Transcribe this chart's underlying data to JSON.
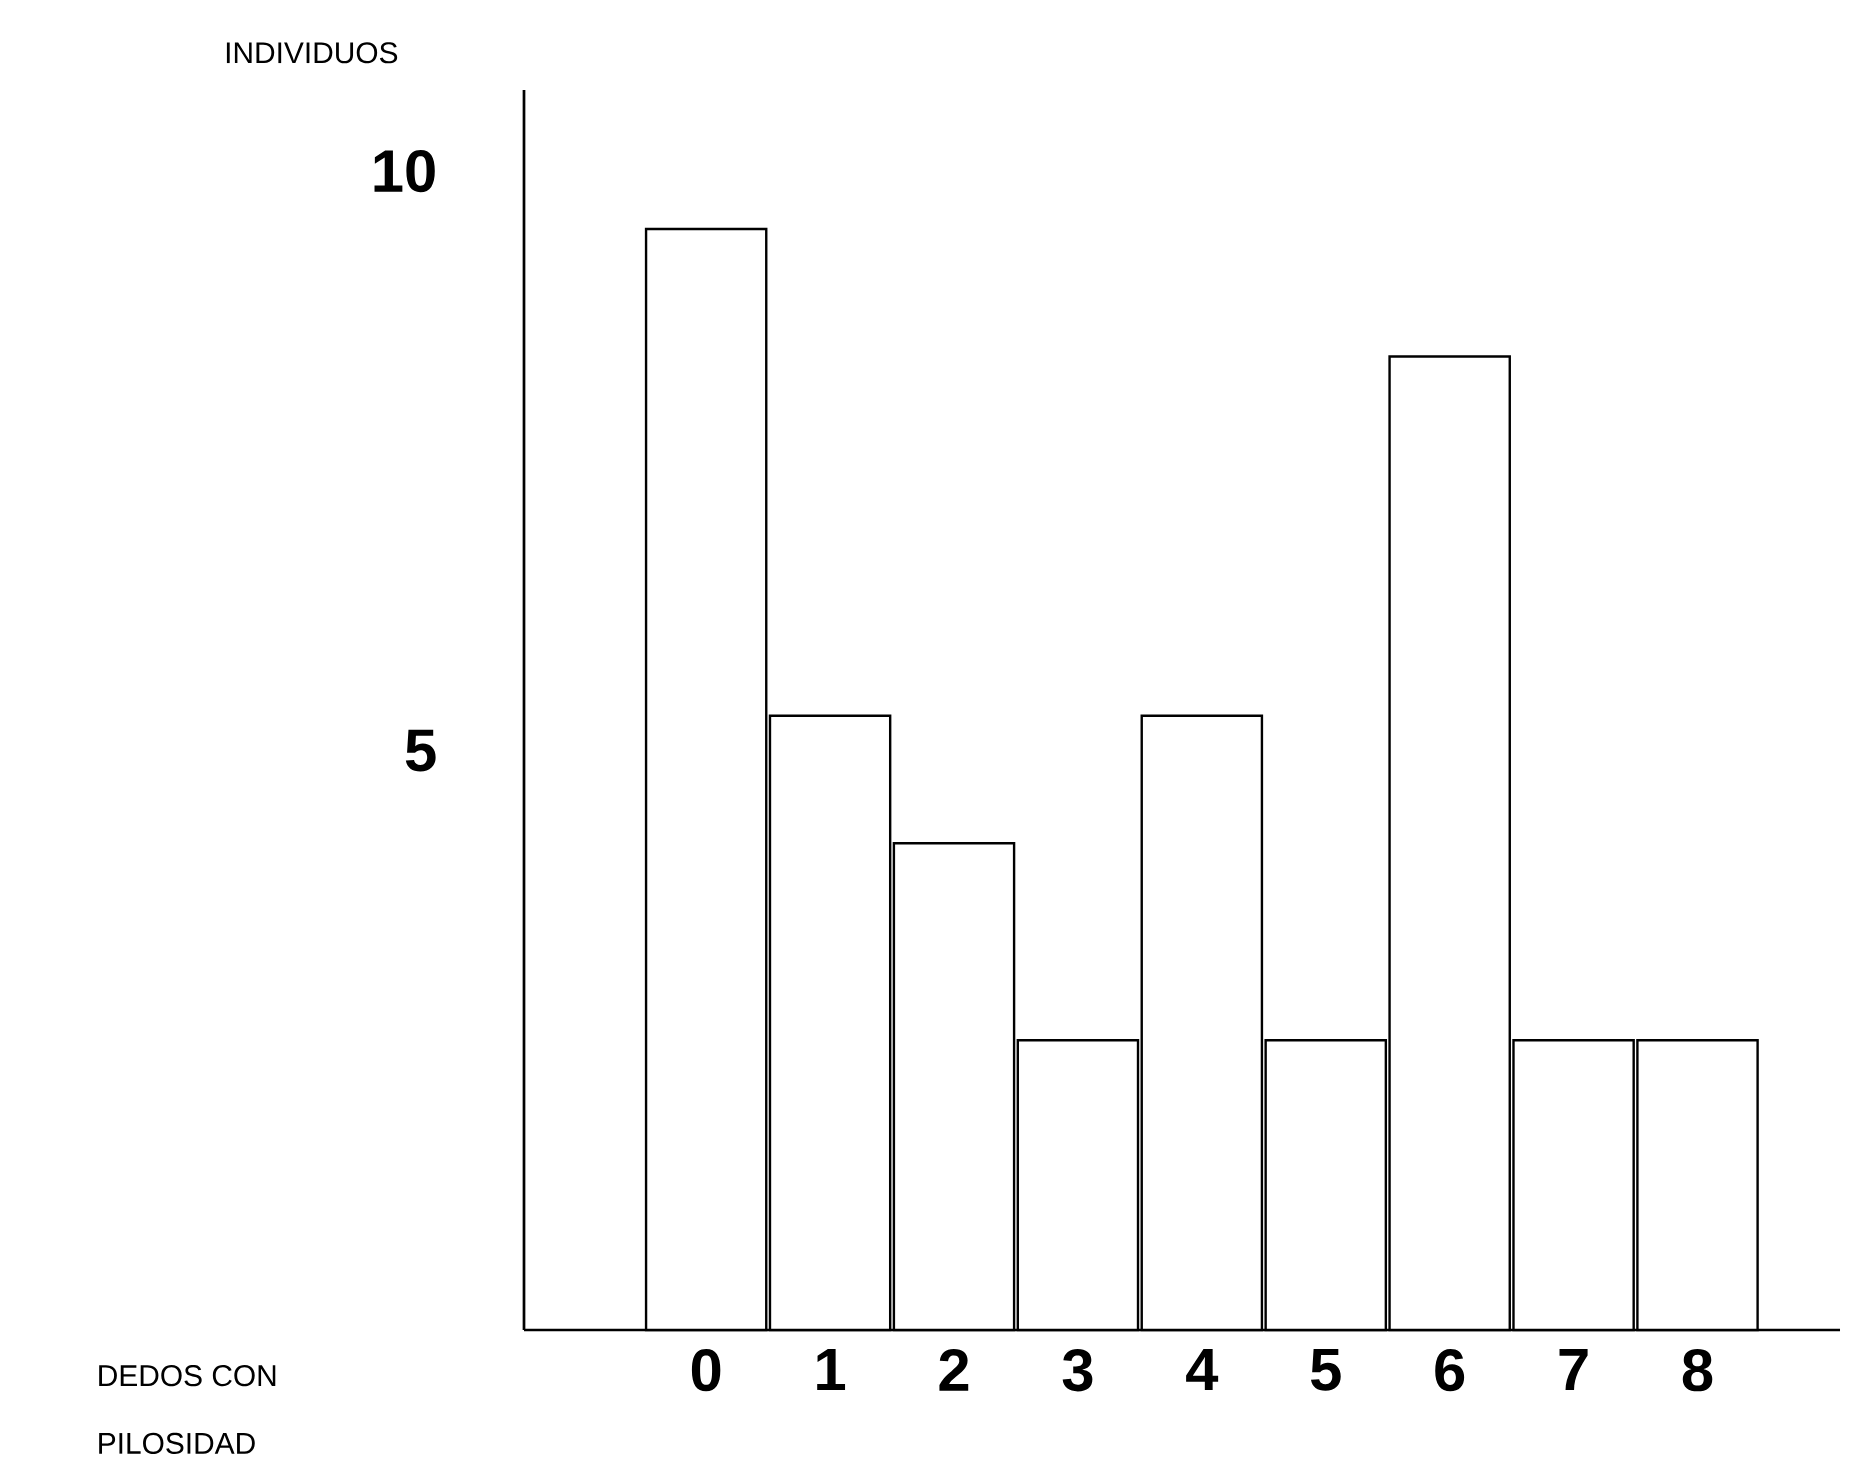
{
  "chart_data": {
    "type": "bar",
    "xlabel": "DEDOS CON\nPILOSIDAD",
    "ylabel": "INDIVIDUOS",
    "categories": [
      "0",
      "1",
      "2",
      "3",
      "4",
      "5",
      "6",
      "7",
      "8"
    ],
    "values": [
      9.5,
      5.3,
      4.2,
      2.5,
      5.3,
      2.5,
      8.4,
      2.5,
      2.5
    ],
    "color": "#ffffff",
    "ylim": [
      0,
      10.7
    ],
    "yticks": [
      5,
      10
    ]
  }
}
